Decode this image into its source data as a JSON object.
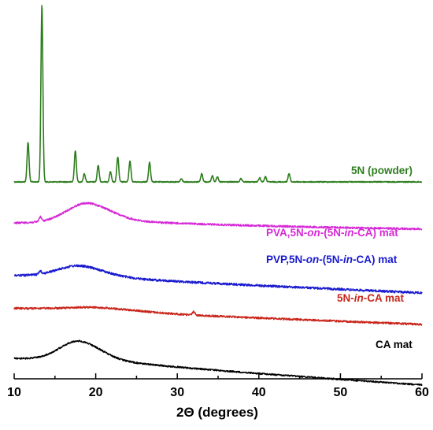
{
  "chart_data": {
    "type": "line",
    "title": "",
    "xlabel": "2Θ (degrees)",
    "ylabel": "",
    "xlim": [
      10,
      60
    ],
    "xticks": [
      "10",
      "20",
      "30",
      "40",
      "50",
      "60"
    ],
    "grid": false,
    "legend": "none (labels placed next to curves)",
    "series": [
      {
        "name": "5N (powder)",
        "color": "#2e7d1e",
        "baseline": 0.2,
        "peaks": [
          [
            11.7,
            3.8
          ],
          [
            13.4,
            17.0
          ],
          [
            17.5,
            3.0
          ],
          [
            18.6,
            0.8
          ],
          [
            20.3,
            1.6
          ],
          [
            21.8,
            1.0
          ],
          [
            22.7,
            2.4
          ],
          [
            24.2,
            2.0
          ],
          [
            26.6,
            1.9
          ],
          [
            30.5,
            0.3
          ],
          [
            33.0,
            0.8
          ],
          [
            34.3,
            0.6
          ],
          [
            34.9,
            0.5
          ],
          [
            37.8,
            0.3
          ],
          [
            40.1,
            0.4
          ],
          [
            40.8,
            0.5
          ],
          [
            43.7,
            0.8
          ]
        ]
      },
      {
        "name": "PVA,5N-on-(5N-in-CA) mat",
        "color": "#d62ad6",
        "halo": [
          19.0,
          1.4,
          2.8
        ],
        "peaks": [
          [
            13.2,
            0.4
          ]
        ]
      },
      {
        "name": "PVP,5N-on-(5N-in-CA) mat",
        "color": "#1a1ad0",
        "halo": [
          18.0,
          0.85,
          3.0
        ],
        "peaks": [
          [
            13.2,
            0.3
          ]
        ]
      },
      {
        "name": "5N-in-CA mat",
        "color": "#c9261c",
        "halo": [
          20.0,
          0.3,
          5.0
        ],
        "peaks": [
          [
            32.0,
            0.3
          ]
        ]
      },
      {
        "name": "CA mat",
        "color": "#000000",
        "halo": [
          18.0,
          1.45,
          2.6
        ],
        "peaks": []
      }
    ]
  }
}
